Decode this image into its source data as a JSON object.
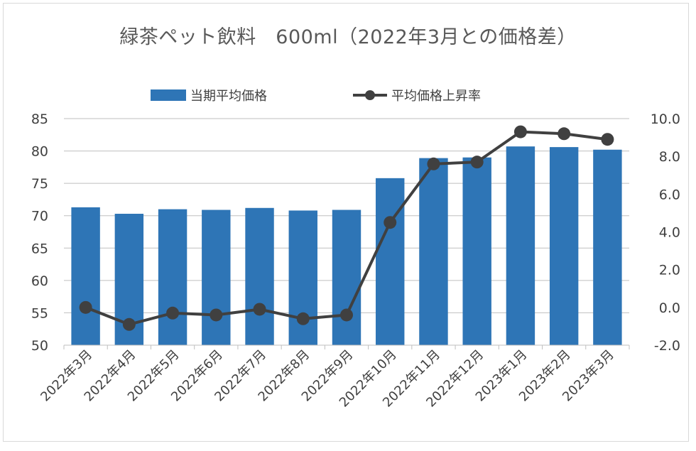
{
  "title": "緑茶ペット飲料　600ml（2022年3月との価格差）",
  "legend": {
    "bar_label": "当期平均価格",
    "line_label": "平均価格上昇率"
  },
  "colors": {
    "bar": "#2e75b6",
    "line": "#404040",
    "grid": "#bfbfbf",
    "text": "#404040"
  },
  "chart_data": {
    "type": "bar",
    "categories": [
      "2022年3月",
      "2022年4月",
      "2022年5月",
      "2022年6月",
      "2022年7月",
      "2022年8月",
      "2022年9月",
      "2022年10月",
      "2022年11月",
      "2022年12月",
      "2023年1月",
      "2023年2月",
      "2023年3月"
    ],
    "series": [
      {
        "name": "当期平均価格",
        "type": "bar",
        "axis": "left",
        "values": [
          71.3,
          70.3,
          71.0,
          70.9,
          71.2,
          70.8,
          70.9,
          75.8,
          78.9,
          79.0,
          80.7,
          80.6,
          80.2
        ]
      },
      {
        "name": "平均価格上昇率",
        "type": "line",
        "axis": "right",
        "values": [
          0.0,
          -0.9,
          -0.3,
          -0.4,
          -0.1,
          -0.6,
          -0.4,
          4.5,
          7.6,
          7.7,
          9.3,
          9.2,
          8.9
        ]
      }
    ],
    "y_left": {
      "min": 50,
      "max": 85,
      "ticks": [
        "50",
        "55",
        "60",
        "65",
        "70",
        "75",
        "80",
        "85"
      ]
    },
    "y_right": {
      "min": -2,
      "max": 10,
      "ticks": [
        "-2.0",
        "0.0",
        "2.0",
        "4.0",
        "6.0",
        "8.0",
        "10.0"
      ]
    },
    "grid": true,
    "legend_position": "top"
  }
}
